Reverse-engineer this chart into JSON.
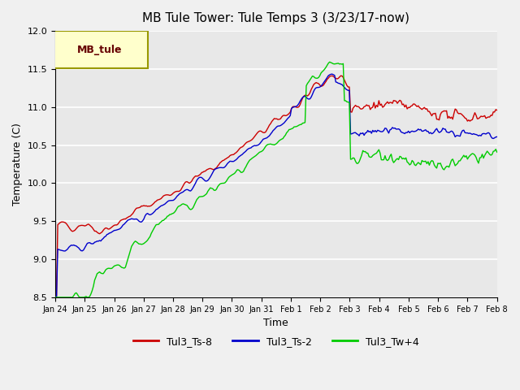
{
  "title": "MB Tule Tower: Tule Temps 3 (3/23/17-now)",
  "xlabel": "Time",
  "ylabel": "Temperature (C)",
  "ylim": [
    8.5,
    12.0
  ],
  "yticks": [
    8.5,
    9.0,
    9.5,
    10.0,
    10.5,
    11.0,
    11.5,
    12.0
  ],
  "xtick_labels": [
    "Jan 24",
    "Jan 25",
    "Jan 26",
    "Jan 27",
    "Jan 28",
    "Jan 29",
    "Jan 30",
    "Jan 31",
    "Feb 1",
    "Feb 2",
    "Feb 3",
    "Feb 4",
    "Feb 5",
    "Feb 6",
    "Feb 7",
    "Feb 8"
  ],
  "n_points": 360,
  "series": {
    "Tul3_Ts-8": {
      "color": "#cc0000"
    },
    "Tul3_Ts-2": {
      "color": "#0000cc"
    },
    "Tul3_Tw+4": {
      "color": "#00cc00"
    }
  },
  "legend_label": "MB_tule",
  "legend_box_color": "#ffffcc",
  "legend_box_edge": "#999900",
  "background_color": "#e8e8e8",
  "plot_bg_color": "#e8e8e8",
  "grid_color": "#ffffff"
}
